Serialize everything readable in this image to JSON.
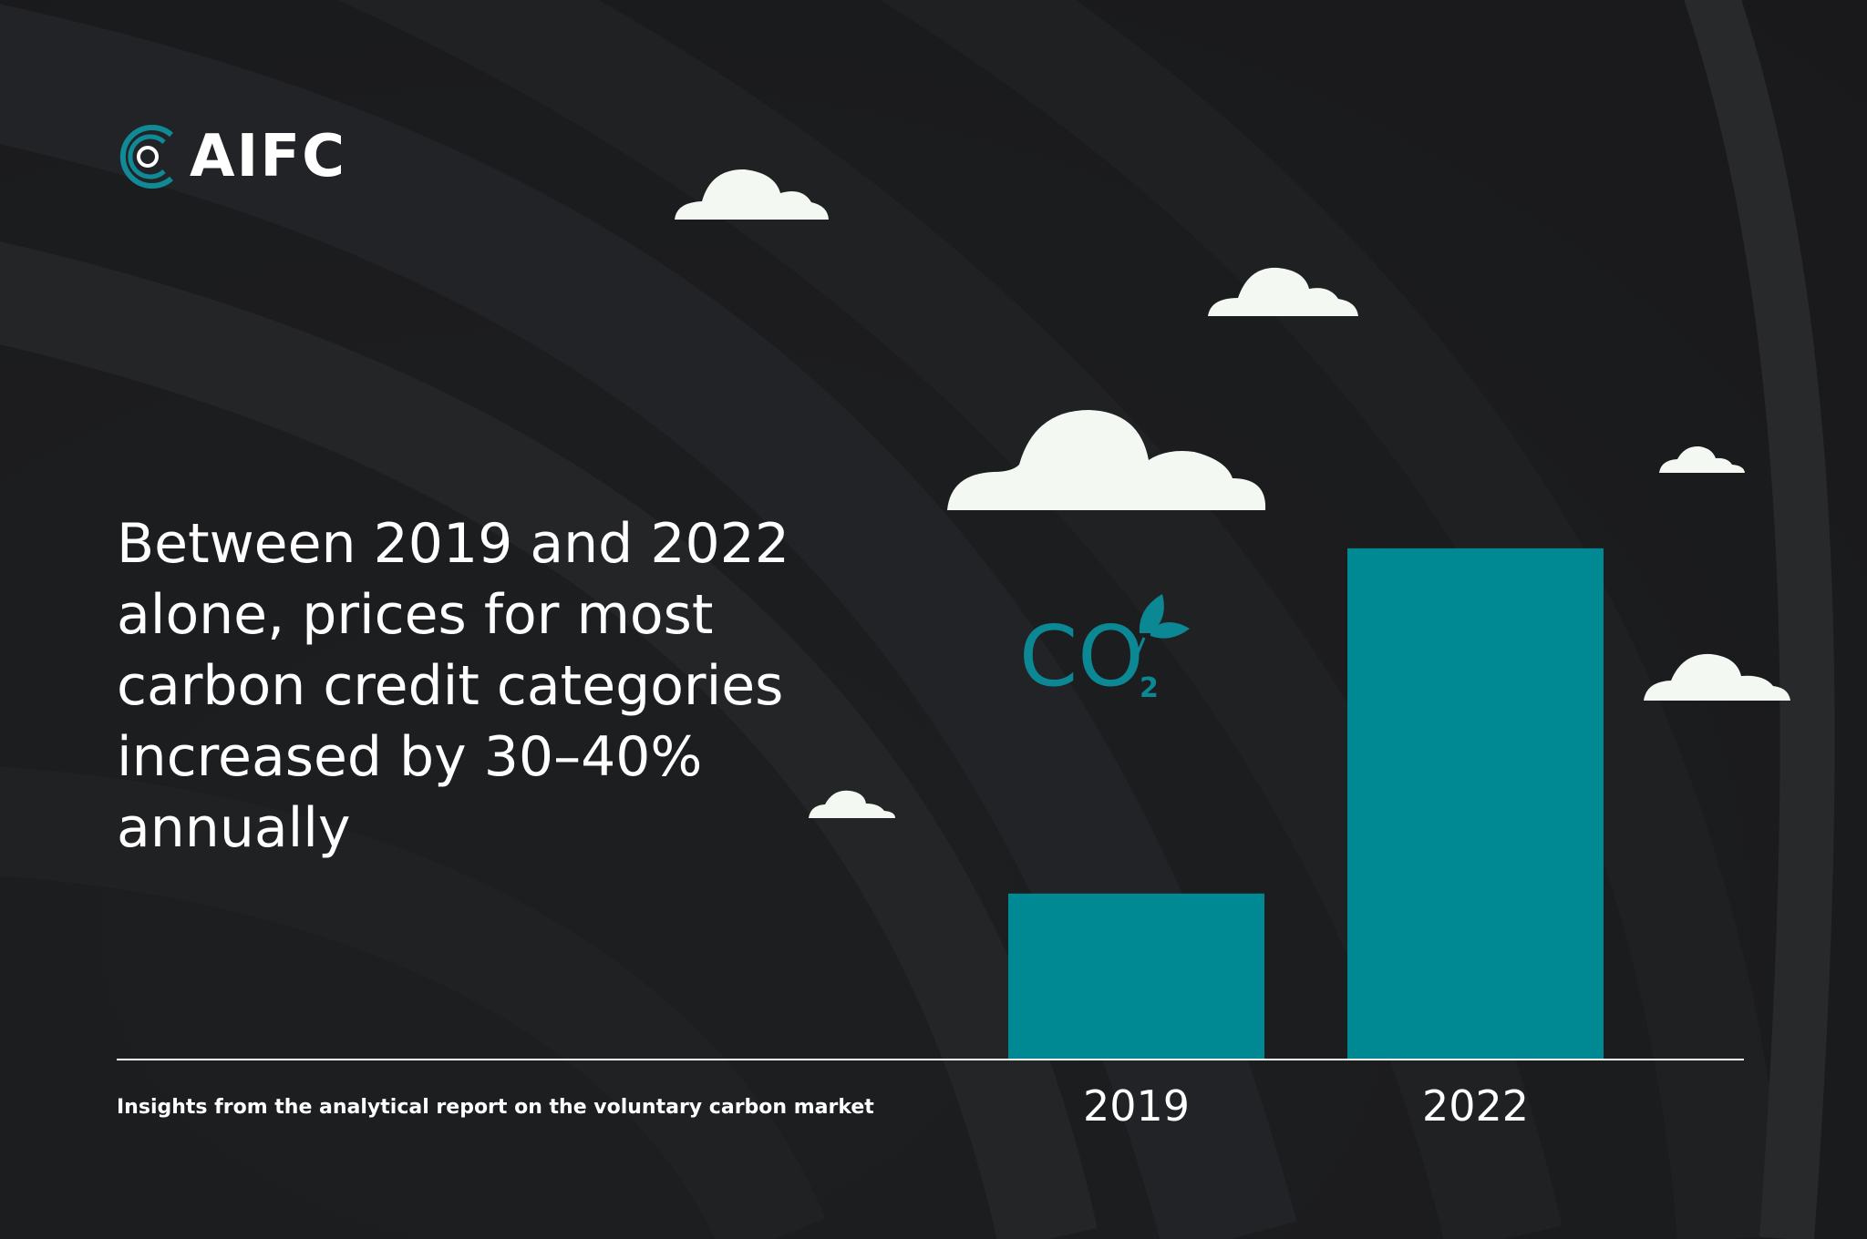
{
  "brand": {
    "name": "AIFC",
    "logo_color": "#0f8a96"
  },
  "headline": {
    "lines": [
      "Between 2019 and 2022",
      "alone, prices for most",
      "carbon credit categories",
      "increased by 30–40%",
      "annually"
    ]
  },
  "footnote": "Insights from the analytical report on the voluntary carbon market",
  "co2_icon": {
    "label": "CO",
    "subscript": "2",
    "color": "#0b8894"
  },
  "colors": {
    "background": "#1c1d1f",
    "bar": "#008893",
    "axis": "#ffffff",
    "text": "#ffffff",
    "cloud": "#f4f8f2"
  },
  "chart_data": {
    "type": "bar",
    "title": "",
    "xlabel": "",
    "ylabel": "",
    "categories": [
      "2019",
      "2022"
    ],
    "values": [
      100,
      308
    ],
    "ylim": [
      0,
      320
    ],
    "grid": false,
    "legend": "none",
    "note": "Unlabeled relative values; the 2022 bar is about 3.1 times the 2019 bar."
  }
}
